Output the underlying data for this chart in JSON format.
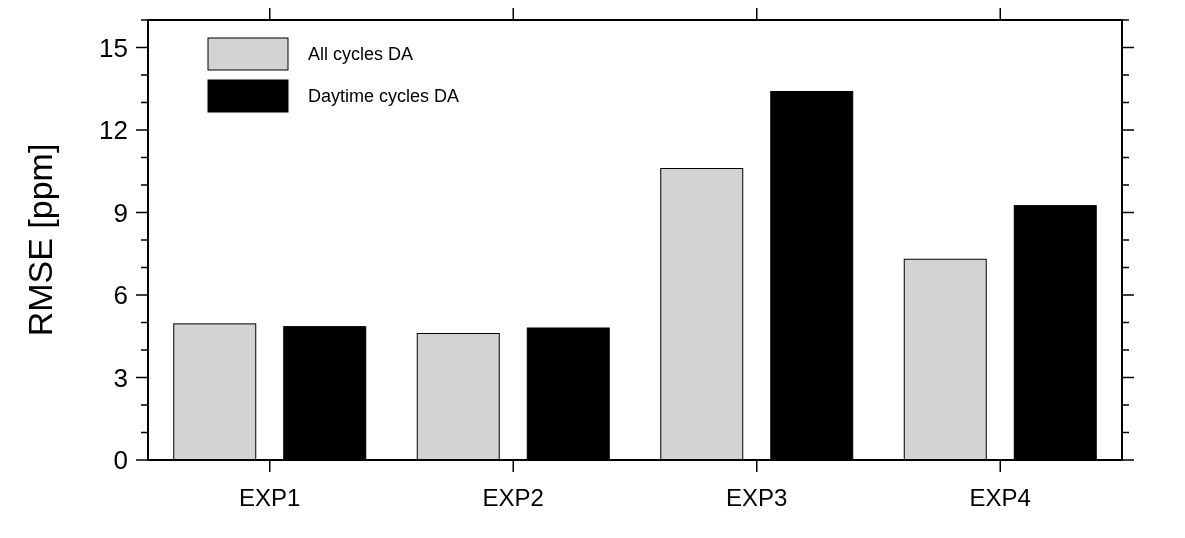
{
  "chart_data": {
    "type": "bar",
    "ylabel": "RMSE [ppm]",
    "categories": [
      "EXP1",
      "EXP2",
      "EXP3",
      "EXP4"
    ],
    "series": [
      {
        "name": "All cycles DA",
        "color": "#d3d3d3",
        "values": [
          4.95,
          4.6,
          10.6,
          7.3
        ]
      },
      {
        "name": "Daytime cycles DA",
        "color": "#000000",
        "values": [
          4.85,
          4.8,
          13.4,
          9.25
        ]
      }
    ],
    "ylim": [
      0,
      16
    ],
    "yticks": [
      0,
      {
        "value": 1,
        "label": null
      },
      {
        "value": 2,
        "label": null
      },
      3,
      {
        "value": 4,
        "label": null
      },
      {
        "value": 5,
        "label": null
      },
      6,
      {
        "value": 7,
        "label": null
      },
      {
        "value": 8,
        "label": null
      },
      9,
      {
        "value": 10,
        "label": null
      },
      {
        "value": 11,
        "label": null
      },
      12,
      {
        "value": 13,
        "label": null
      },
      {
        "value": 14,
        "label": null
      },
      15,
      {
        "value": 16,
        "label": null
      }
    ],
    "legend": "top left",
    "grid": false
  }
}
